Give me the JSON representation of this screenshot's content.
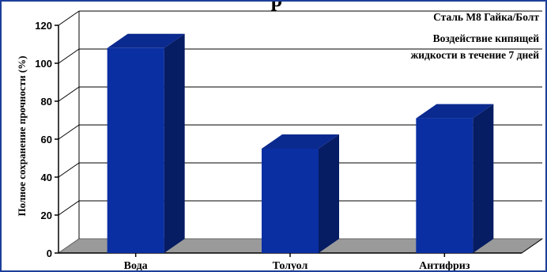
{
  "chart_data": {
    "type": "bar",
    "style": "3d",
    "categories": [
      "Вода",
      "Толуол",
      "Антифриз"
    ],
    "values": [
      108,
      55,
      71
    ],
    "ylabel": "Полное сохранение прочности (%)",
    "xlabel": "",
    "ylim": [
      0,
      120
    ],
    "yticks": [
      "0",
      "20",
      "40",
      "60",
      "80",
      "100",
      "120"
    ],
    "grid": true,
    "legend": "none",
    "annotations": [
      "Сталь М8 Гайка/Болт",
      "Воздействие кипящей",
      "жидкости в течение 7 дней"
    ]
  },
  "colors": {
    "bar_front": "#0a2fa3",
    "bar_side": "#061c63",
    "bar_top": "#0b2a8f",
    "floor": "#9a9a9a",
    "frame": "#1c3f9a"
  }
}
